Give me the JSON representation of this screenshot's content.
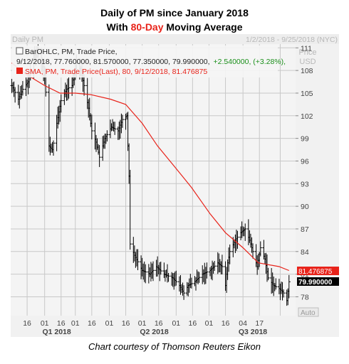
{
  "title": {
    "line1": "Daily of PM since January 2018",
    "line2_pre": "With ",
    "line2_highlight": "80-Day",
    "line2_post": " Moving Average"
  },
  "header": {
    "left": "Daily PM",
    "right": "1/2/2018 - 9/25/2018 (NYC)",
    "price_label": [
      "Price",
      "USD"
    ]
  },
  "legend": {
    "ohlc_line1": "BarOHLC, PM, Trade Price,",
    "ohlc_line2_main": "9/12/2018, 77.760000, 81.570000, 77.350000, 79.990000,",
    "ohlc_line2_change": "+2.540000, (+3.28%),",
    "sma_line": "SMA, PM, Trade Price(Last),  80,  9/12/2018, 81.476875"
  },
  "colors": {
    "bars": "#000000",
    "sma": "#e8231a",
    "highlight": "#e8231a",
    "change": "#1a8f1a",
    "grid": "#c8c8c8",
    "panel_bg": "#f4f4f4"
  },
  "value_tags": {
    "sma": "81.476875",
    "price": "79.990000"
  },
  "auto_label": "Auto",
  "credit": "Chart courtesy of Thomson Reuters Eikon",
  "chart_data": {
    "type": "line",
    "title": "Daily of PM since January 2018 With 80-Day Moving Average",
    "ylabel": "Price USD",
    "ylim": [
      75.5,
      111.5
    ],
    "y_ticks": [
      78,
      81,
      84,
      87,
      90,
      93,
      96,
      99,
      102,
      105,
      108,
      111
    ],
    "x_ticks": [
      "16",
      "01",
      "16",
      "01",
      "16",
      "01",
      "16",
      "01",
      "16",
      "01",
      "16",
      "01",
      "16",
      "04",
      "17"
    ],
    "x_periods": [
      "Q1 2018",
      "Q2 2018",
      "Q3 2018"
    ],
    "grid": true,
    "series": [
      {
        "name": "BarOHLC, PM, Trade Price",
        "style": "ohlc-bars",
        "close_path": [
          [
            "1/2/2018",
            106.0
          ],
          [
            "1/8/2018",
            104.2
          ],
          [
            "1/12/2018",
            105.5
          ],
          [
            "1/17/2018",
            106.5
          ],
          [
            "1/22/2018",
            110.0
          ],
          [
            "1/26/2018",
            110.5
          ],
          [
            "2/1/2018",
            107.5
          ],
          [
            "2/5/2018",
            98.0
          ],
          [
            "2/8/2018",
            97.5
          ],
          [
            "2/12/2018",
            101.0
          ],
          [
            "2/16/2018",
            104.0
          ],
          [
            "2/21/2018",
            105.5
          ],
          [
            "2/26/2018",
            106.0
          ],
          [
            "3/2/2018",
            109.0
          ],
          [
            "3/6/2018",
            108.0
          ],
          [
            "3/9/2018",
            106.0
          ],
          [
            "3/13/2018",
            103.0
          ],
          [
            "3/16/2018",
            100.0
          ],
          [
            "3/20/2018",
            98.5
          ],
          [
            "3/23/2018",
            96.5
          ],
          [
            "3/28/2018",
            99.0
          ],
          [
            "4/3/2018",
            100.5
          ],
          [
            "4/9/2018",
            100.0
          ],
          [
            "4/13/2018",
            101.5
          ],
          [
            "4/17/2018",
            102.0
          ],
          [
            "4/19/2018",
            94.0
          ],
          [
            "4/20/2018",
            85.0
          ],
          [
            "4/24/2018",
            83.5
          ],
          [
            "5/1/2018",
            81.5
          ],
          [
            "5/8/2018",
            81.0
          ],
          [
            "5/14/2018",
            82.0
          ],
          [
            "5/21/2018",
            81.0
          ],
          [
            "5/29/2018",
            80.5
          ],
          [
            "6/4/2018",
            79.5
          ],
          [
            "6/8/2018",
            78.5
          ],
          [
            "6/12/2018",
            79.5
          ],
          [
            "6/18/2018",
            80.0
          ],
          [
            "6/25/2018",
            81.0
          ],
          [
            "7/2/2018",
            81.5
          ],
          [
            "7/9/2018",
            82.5
          ],
          [
            "7/13/2018",
            82.0
          ],
          [
            "7/16/2018",
            79.5
          ],
          [
            "7/18/2018",
            82.5
          ],
          [
            "7/20/2018",
            84.0
          ],
          [
            "7/25/2018",
            85.5
          ],
          [
            "7/30/2018",
            86.5
          ],
          [
            "8/3/2018",
            87.0
          ],
          [
            "8/7/2018",
            85.5
          ],
          [
            "8/10/2018",
            84.0
          ],
          [
            "8/14/2018",
            82.0
          ],
          [
            "8/17/2018",
            84.5
          ],
          [
            "8/21/2018",
            83.0
          ],
          [
            "8/24/2018",
            80.5
          ],
          [
            "8/29/2018",
            79.5
          ],
          [
            "9/4/2018",
            79.0
          ],
          [
            "9/7/2018",
            78.5
          ],
          [
            "9/10/2018",
            77.5
          ],
          [
            "9/12/2018",
            79.99
          ]
        ]
      },
      {
        "name": "SMA, PM, Trade Price(Last), 80",
        "style": "line",
        "points": [
          [
            "1/2/2018",
            109.0
          ],
          [
            "1/15/2018",
            107.5
          ],
          [
            "2/1/2018",
            106.0
          ],
          [
            "2/15/2018",
            105.0
          ],
          [
            "3/1/2018",
            105.0
          ],
          [
            "3/15/2018",
            104.8
          ],
          [
            "4/2/2018",
            104.2
          ],
          [
            "4/16/2018",
            103.5
          ],
          [
            "5/1/2018",
            101.0
          ],
          [
            "5/15/2018",
            98.0
          ],
          [
            "6/1/2018",
            95.0
          ],
          [
            "6/15/2018",
            92.5
          ],
          [
            "7/2/2018",
            89.0
          ],
          [
            "7/16/2018",
            86.5
          ],
          [
            "8/1/2018",
            84.5
          ],
          [
            "8/15/2018",
            82.5
          ],
          [
            "9/3/2018",
            82.0
          ],
          [
            "9/12/2018",
            81.48
          ]
        ]
      }
    ]
  }
}
